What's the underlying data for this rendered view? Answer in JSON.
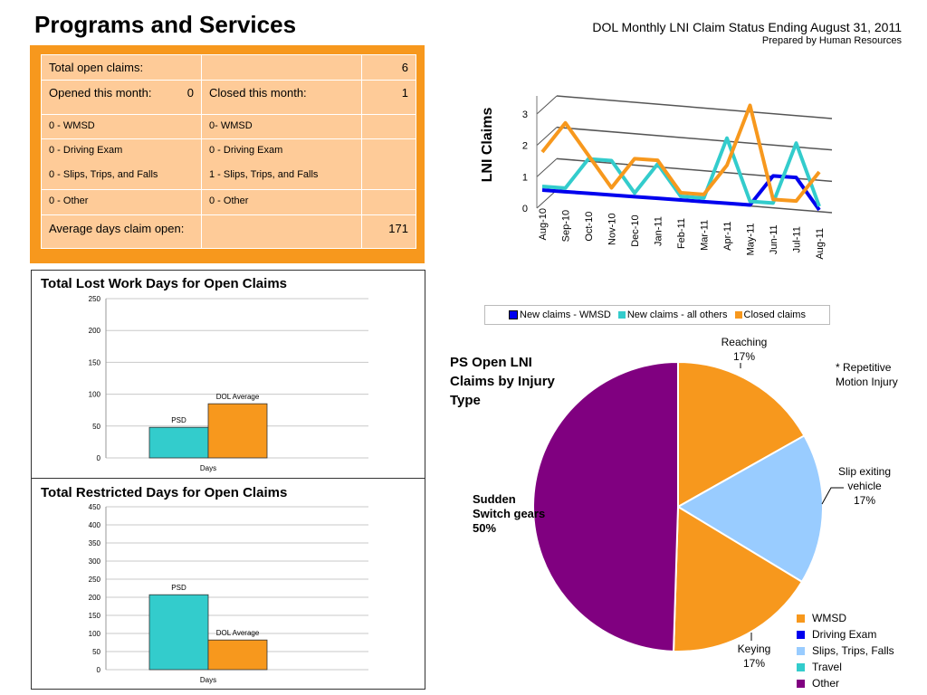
{
  "page_title": "Programs and Services",
  "header": {
    "title": "DOL Monthly LNI Claim Status Ending August 31, 2011",
    "subtitle": "Prepared by Human Resources"
  },
  "summary": {
    "total_open_label": "Total open claims:",
    "total_open_value": "6",
    "opened_label": "Opened this month:",
    "opened_value": "0",
    "closed_label": "Closed this month:",
    "closed_value": "1",
    "rows": [
      {
        "left": "0 - WMSD",
        "right": "0- WMSD"
      },
      {
        "left": "0 -  Driving Exam",
        "right": "0 - Driving Exam"
      },
      {
        "left": "0 - Slips, Trips, and Falls",
        "right": "1 - Slips, Trips, and Falls"
      },
      {
        "left": "0 -  Other",
        "right": "0 - Other"
      }
    ],
    "avg_label": "Average days claim open:",
    "avg_value": "171"
  },
  "colors": {
    "orange": "#f7981d",
    "table_bg": "#fecb98",
    "teal": "#33cccc",
    "blue": "#0000ee",
    "light_blue": "#99ccff",
    "purple": "#800080"
  },
  "chart_data": [
    {
      "type": "line",
      "ylabel": "LNI Claims",
      "x": [
        "Aug-10",
        "Sep-10",
        "Oct-10",
        "Nov-10",
        "Dec-10",
        "Jan-11",
        "Feb-11",
        "Mar-11",
        "Apr-11",
        "May-11",
        "Jun-11",
        "Jul-11",
        "Aug-11"
      ],
      "ylim": [
        0,
        3
      ],
      "yticks": [
        "0",
        "1",
        "2",
        "3"
      ],
      "series": [
        {
          "name": "New claims - WMSD",
          "color": "#0000ee",
          "values": [
            0,
            0,
            0,
            0,
            0,
            0,
            0,
            0,
            0,
            0,
            1,
            1,
            0
          ]
        },
        {
          "name": "New claims - all others",
          "color": "#33cccc",
          "values": [
            0,
            0,
            1,
            1,
            0,
            1,
            0,
            0,
            2,
            0,
            0,
            2,
            0
          ]
        },
        {
          "name": "Closed claims",
          "color": "#f7981d",
          "values": [
            1,
            2,
            1,
            0,
            1,
            1,
            0,
            0,
            1,
            3,
            0,
            0,
            1
          ]
        }
      ],
      "legend": "bottom"
    },
    {
      "type": "bar",
      "title": "Total Lost Work Days for Open Claims",
      "xlabel": "Days",
      "ylim": [
        0,
        250
      ],
      "yticks": [
        "0",
        "50",
        "100",
        "150",
        "200",
        "250"
      ],
      "series": [
        {
          "name": "PSD",
          "color": "#33cccc",
          "values": [
            48
          ]
        },
        {
          "name": "DOL Average",
          "color": "#f7981d",
          "values": [
            85
          ]
        }
      ]
    },
    {
      "type": "bar",
      "title": "Total Restricted Days for Open Claims",
      "xlabel": "Days",
      "ylim": [
        0,
        450
      ],
      "yticks": [
        "0",
        "50",
        "100",
        "150",
        "200",
        "250",
        "300",
        "350",
        "400",
        "450"
      ],
      "series": [
        {
          "name": "PSD",
          "color": "#33cccc",
          "values": [
            207
          ]
        },
        {
          "name": "DOL Average",
          "color": "#f7981d",
          "values": [
            82
          ]
        }
      ]
    },
    {
      "type": "pie",
      "title": "PS Open LNI Claims by Injury Type",
      "note": "* Repetitive Motion Injury",
      "slices": [
        {
          "label": "Reaching",
          "pct_label": "17%",
          "value": 17,
          "color": "#f7981d"
        },
        {
          "label": "Slip exiting vehicle",
          "pct_label": "17%",
          "value": 17,
          "color": "#99ccff"
        },
        {
          "label": "Keying",
          "pct_label": "17%",
          "value": 17,
          "color": "#f7981d"
        },
        {
          "label": "Sudden Switch gears",
          "pct_label": "50%",
          "value": 50,
          "color": "#800080"
        }
      ],
      "legend": [
        {
          "label": "WMSD",
          "color": "#f7981d"
        },
        {
          "label": "Driving Exam",
          "color": "#0000ee"
        },
        {
          "label": "Slips, Trips, Falls",
          "color": "#99ccff"
        },
        {
          "label": "Travel",
          "color": "#33cccc"
        },
        {
          "label": "Other",
          "color": "#800080"
        }
      ]
    }
  ]
}
